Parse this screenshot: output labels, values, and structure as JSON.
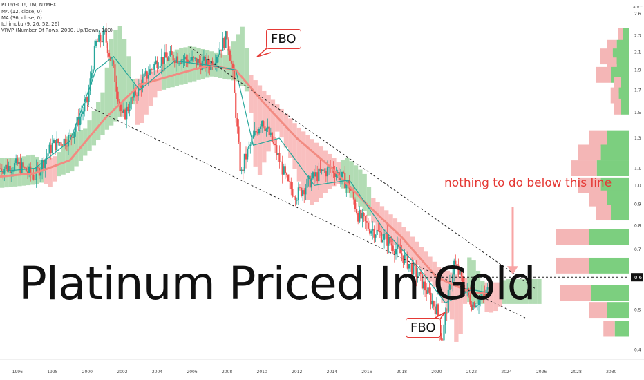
{
  "header": {
    "symbol_line": "PL1!/GC1!, 1M, NYMEX",
    "indicators": [
      "MA (12, close, 0)",
      "MA (36, close, 0)",
      "Ichimoku (9, 26, 52, 26)",
      "VRVP (Number Of Rows, 2000, Up/Down, 100)"
    ]
  },
  "overlay": {
    "title": "Platinum Priced In Gold",
    "fbo_top": "FBO",
    "fbo_bottom": "FBO",
    "note": "nothing to do below this line"
  },
  "axis": {
    "scale_label": "apcc",
    "current_price_label": "0.6",
    "y_ticks": [
      "2.6",
      "2.3",
      "2.1",
      "1.9",
      "1.7",
      "1.5",
      "1.3",
      "1.1",
      "1.0",
      "0.9",
      "0.8",
      "0.7",
      "0.6",
      "0.5",
      "0.4"
    ],
    "x_ticks": [
      "1996",
      "1998",
      "2000",
      "2002",
      "2004",
      "2006",
      "2008",
      "2010",
      "2012",
      "2014",
      "2016",
      "2018",
      "2020",
      "2022",
      "2024",
      "2026",
      "2028",
      "2030"
    ]
  },
  "colors": {
    "up": "#26a69a",
    "down": "#ef5350",
    "cloud_bull": "#a5d6a7",
    "cloud_bear": "#f8b4b4",
    "ma_fast": "#26a69a",
    "ma_slow": "#f28b82",
    "vp_up": "#7ccf7f",
    "vp_down": "#f4b6b6",
    "text_red": "#e53935"
  },
  "chart_data": {
    "type": "candlestick",
    "y_scale": "log",
    "ylim": [
      0.38,
      2.7
    ],
    "xlim": [
      1995.0,
      2031.0
    ],
    "key_level": 0.6,
    "series": [
      {
        "name": "PL1!/GC1!",
        "x": [
          1995.0,
          1996.0,
          1997.0,
          1998.0,
          1999.0,
          2000.0,
          2000.5,
          2001.0,
          2001.5,
          2002.0,
          2003.0,
          2004.0,
          2005.0,
          2006.0,
          2007.0,
          2008.0,
          2008.3,
          2008.8,
          2009.0,
          2009.5,
          2010.0,
          2010.5,
          2011.0,
          2011.5,
          2012.0,
          2013.0,
          2014.0,
          2014.5,
          2015.0,
          2015.5,
          2016.0,
          2017.0,
          2018.0,
          2019.0,
          2020.0,
          2020.3,
          2020.7,
          2021.0,
          2021.5,
          2022.0,
          2022.5,
          2023.0
        ],
        "y": [
          1.1,
          1.12,
          1.05,
          1.25,
          1.3,
          1.6,
          2.2,
          2.3,
          1.9,
          1.45,
          1.75,
          2.0,
          2.05,
          2.0,
          1.95,
          2.3,
          1.9,
          1.05,
          1.15,
          1.3,
          1.45,
          1.3,
          1.15,
          1.0,
          0.95,
          1.05,
          1.1,
          1.05,
          1.0,
          0.85,
          0.8,
          0.75,
          0.68,
          0.6,
          0.5,
          0.42,
          0.55,
          0.65,
          0.58,
          0.52,
          0.53,
          0.56
        ]
      },
      {
        "name": "MA (12, close, 0)",
        "x": [
          1995.0,
          1997.0,
          1999.0,
          2000.5,
          2001.5,
          2003.0,
          2005.0,
          2007.0,
          2008.5,
          2009.5,
          2011.0,
          2013.0,
          2015.0,
          2017.0,
          2019.0,
          2020.5,
          2022.0,
          2023.0
        ],
        "y": [
          1.08,
          1.1,
          1.28,
          1.9,
          2.05,
          1.7,
          2.0,
          1.95,
          1.9,
          1.25,
          1.3,
          1.0,
          1.03,
          0.78,
          0.63,
          0.52,
          0.56,
          0.55
        ]
      },
      {
        "name": "MA (36, close, 0)",
        "x": [
          1995.0,
          1997.0,
          1999.0,
          2001.0,
          2003.0,
          2005.0,
          2007.0,
          2008.5,
          2010.0,
          2012.0,
          2014.0,
          2016.0,
          2018.0,
          2020.0,
          2022.0,
          2023.0
        ],
        "y": [
          1.05,
          1.07,
          1.15,
          1.45,
          1.75,
          1.85,
          1.95,
          1.9,
          1.6,
          1.3,
          1.1,
          0.9,
          0.75,
          0.6,
          0.55,
          0.55
        ]
      }
    ]
  }
}
